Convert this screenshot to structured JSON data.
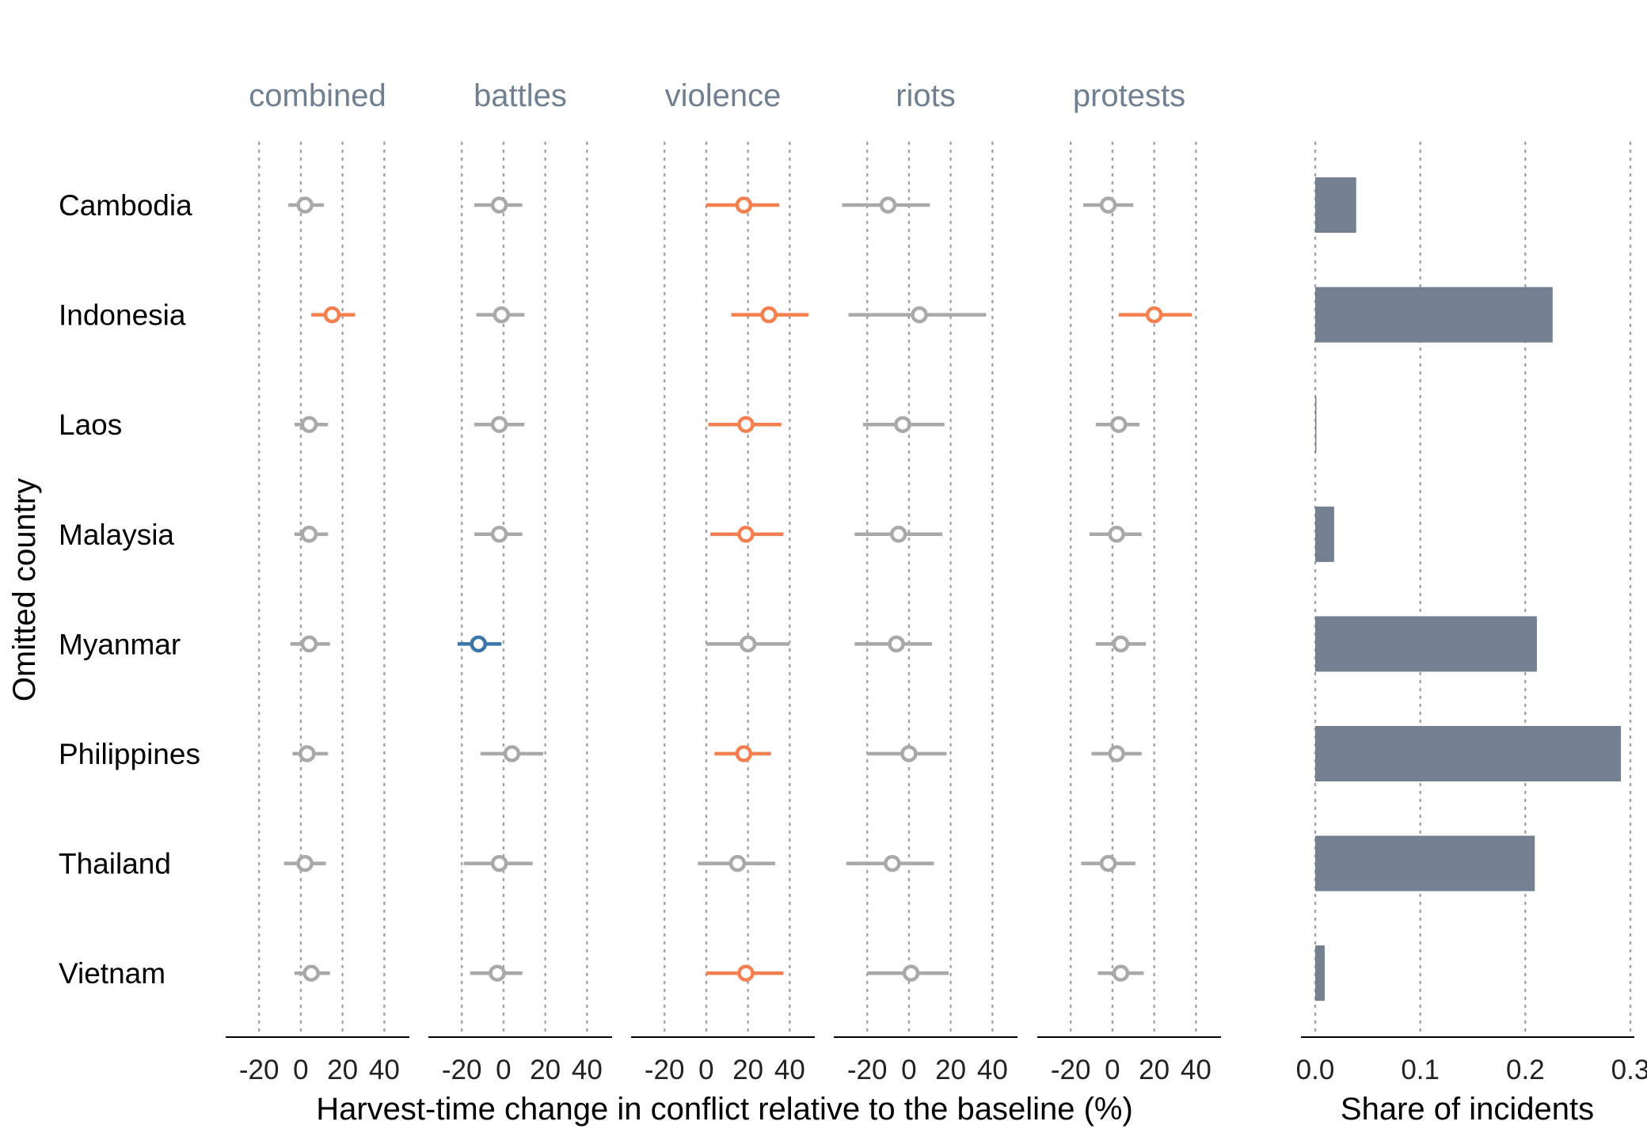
{
  "chart_data": {
    "type": "scatter",
    "ylabel": "Omitted country",
    "countries": [
      "Cambodia",
      "Indonesia",
      "Laos",
      "Malaysia",
      "Myanmar",
      "Philippines",
      "Thailand",
      "Vietnam"
    ],
    "effect_panels": [
      {
        "title": "combined",
        "estimates": [
          2,
          15,
          4,
          4,
          4,
          3,
          2,
          5
        ],
        "ci_low": [
          -6,
          5,
          -3,
          -3,
          -5,
          -4,
          -8,
          -3
        ],
        "ci_high": [
          11,
          26,
          13,
          13,
          14,
          13,
          12,
          14
        ],
        "significance": [
          "ns",
          "positive",
          "ns",
          "ns",
          "ns",
          "ns",
          "ns",
          "ns"
        ]
      },
      {
        "title": "battles",
        "estimates": [
          -2,
          -1,
          -2,
          -2,
          -12,
          4,
          -2,
          -3
        ],
        "ci_low": [
          -14,
          -13,
          -14,
          -14,
          -22,
          -11,
          -19,
          -16
        ],
        "ci_high": [
          9,
          10,
          10,
          9,
          -1,
          19,
          14,
          9
        ],
        "significance": [
          "ns",
          "ns",
          "ns",
          "ns",
          "negative",
          "ns",
          "ns",
          "ns"
        ]
      },
      {
        "title": "violence",
        "estimates": [
          18,
          30,
          19,
          19,
          20,
          18,
          15,
          19
        ],
        "ci_low": [
          0,
          12,
          1,
          2,
          0,
          4,
          -4,
          0
        ],
        "ci_high": [
          35,
          49,
          36,
          37,
          40,
          31,
          33,
          37
        ],
        "significance": [
          "positive",
          "positive",
          "positive",
          "positive",
          "ns",
          "positive",
          "ns",
          "positive"
        ]
      },
      {
        "title": "riots",
        "estimates": [
          -10,
          5,
          -3,
          -5,
          -6,
          0,
          -8,
          1
        ],
        "ci_low": [
          -32,
          -29,
          -22,
          -26,
          -26,
          -20,
          -30,
          -20
        ],
        "ci_high": [
          10,
          37,
          17,
          16,
          11,
          18,
          12,
          19
        ],
        "significance": [
          "ns",
          "ns",
          "ns",
          "ns",
          "ns",
          "ns",
          "ns",
          "ns"
        ]
      },
      {
        "title": "protests",
        "estimates": [
          -2,
          20,
          3,
          2,
          4,
          2,
          -2,
          4
        ],
        "ci_low": [
          -14,
          3,
          -8,
          -11,
          -8,
          -10,
          -15,
          -7
        ],
        "ci_high": [
          10,
          38,
          13,
          14,
          16,
          14,
          11,
          15
        ],
        "significance": [
          "ns",
          "positive",
          "ns",
          "ns",
          "ns",
          "ns",
          "ns",
          "ns"
        ]
      }
    ],
    "effect_ticks": [
      "-20",
      "0",
      "20",
      "40"
    ],
    "effect_xlim": [
      -36,
      52
    ],
    "effect_xlabel": "Harvest-time change in conflict relative to the baseline (%)",
    "share_panel": {
      "type": "bar",
      "orientation": "horizontal",
      "values": [
        0.039,
        0.226,
        0.001,
        0.018,
        0.211,
        0.291,
        0.209,
        0.009
      ],
      "xlabel": "Share of incidents",
      "ticks": [
        "0.0",
        "0.1",
        "0.2",
        "0.3"
      ],
      "xlim": [
        0,
        0.3
      ]
    },
    "grid": "vertical dotted",
    "colors": {
      "ns": "#a9a9a9",
      "positive": "#f4804f",
      "negative": "#3a76a9",
      "bar": "#738090",
      "panel_title": "#708090",
      "gridline": "#a0a0a0",
      "axis_line": "#000000"
    }
  }
}
